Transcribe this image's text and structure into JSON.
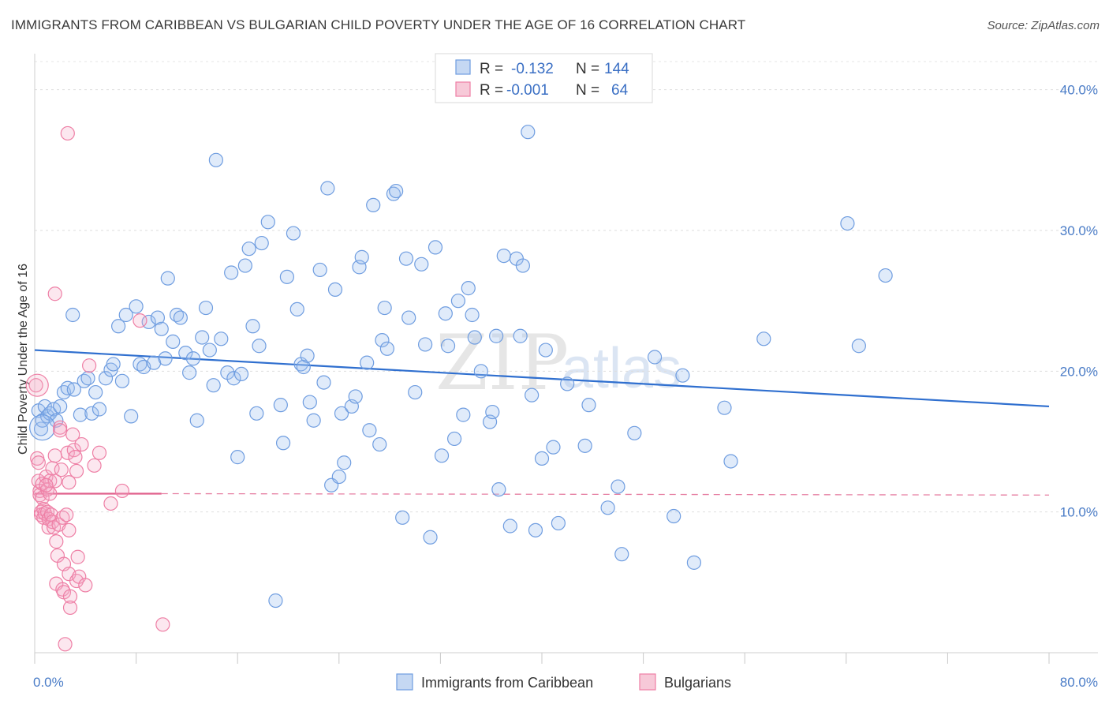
{
  "title": "IMMIGRANTS FROM CARIBBEAN VS BULGARIAN CHILD POVERTY UNDER THE AGE OF 16 CORRELATION CHART",
  "source": "Source: ZipAtlas.com",
  "watermark": {
    "zip": "ZIP",
    "atlas": "atlas"
  },
  "colors": {
    "blue": "#6f9de0",
    "blue_line": "#2f6fcf",
    "pink": "#ee7fa5",
    "pink_line": "#e0608c"
  },
  "legend": {
    "rows": [
      {
        "r_label": "R =",
        "r_value": "-0.132",
        "n_label": "N =",
        "n_value": "144"
      },
      {
        "r_label": "R =",
        "r_value": "-0.001",
        "n_label": "N =",
        "n_value": "64"
      }
    ]
  },
  "chart_data": {
    "type": "scatter",
    "ylabel": "Child Poverty Under the Age of 16",
    "xlim": [
      0,
      80
    ],
    "ylim": [
      0,
      42
    ],
    "y_ticks": [
      "10.0%",
      "20.0%",
      "30.0%",
      "40.0%"
    ],
    "y_tick_values": [
      10,
      20,
      30,
      40
    ],
    "x_tick_labels": [
      "0.0%",
      "80.0%"
    ],
    "grid": true,
    "legend_position": "top-center",
    "series": [
      {
        "name": "Immigrants from Caribbean",
        "trend": {
          "x": [
            0,
            80
          ],
          "y": [
            21.5,
            17.5
          ]
        },
        "points": [
          [
            0.3,
            17.2
          ],
          [
            0.5,
            15.9
          ],
          [
            0.6,
            16.5
          ],
          [
            0.8,
            17.5
          ],
          [
            1.0,
            16.8
          ],
          [
            1.2,
            17.0
          ],
          [
            1.5,
            17.3
          ],
          [
            1.7,
            16.5
          ],
          [
            2.0,
            17.5
          ],
          [
            2.3,
            18.5
          ],
          [
            2.6,
            18.8
          ],
          [
            3.0,
            24.0
          ],
          [
            3.1,
            18.7
          ],
          [
            3.6,
            16.9
          ],
          [
            3.9,
            19.3
          ],
          [
            4.2,
            19.5
          ],
          [
            4.5,
            17.0
          ],
          [
            4.8,
            18.5
          ],
          [
            5.1,
            17.3
          ],
          [
            5.6,
            19.5
          ],
          [
            6.0,
            20.1
          ],
          [
            6.2,
            20.5
          ],
          [
            6.6,
            23.2
          ],
          [
            6.9,
            19.3
          ],
          [
            7.2,
            24.0
          ],
          [
            7.6,
            16.8
          ],
          [
            8.0,
            24.6
          ],
          [
            8.3,
            20.5
          ],
          [
            8.6,
            20.3
          ],
          [
            9.0,
            23.5
          ],
          [
            9.4,
            20.6
          ],
          [
            9.7,
            23.8
          ],
          [
            10.0,
            23.0
          ],
          [
            10.3,
            20.9
          ],
          [
            10.5,
            26.6
          ],
          [
            10.9,
            22.1
          ],
          [
            11.2,
            24.0
          ],
          [
            11.5,
            23.8
          ],
          [
            11.9,
            21.3
          ],
          [
            12.2,
            19.9
          ],
          [
            12.5,
            20.9
          ],
          [
            12.8,
            16.5
          ],
          [
            13.2,
            22.4
          ],
          [
            13.5,
            24.5
          ],
          [
            13.8,
            21.5
          ],
          [
            14.1,
            19.0
          ],
          [
            14.3,
            35.0
          ],
          [
            14.7,
            22.3
          ],
          [
            15.2,
            19.9
          ],
          [
            15.5,
            27.0
          ],
          [
            15.7,
            19.5
          ],
          [
            16.0,
            13.9
          ],
          [
            16.3,
            19.8
          ],
          [
            16.6,
            27.5
          ],
          [
            16.9,
            28.7
          ],
          [
            17.2,
            23.2
          ],
          [
            17.5,
            17.0
          ],
          [
            17.7,
            21.8
          ],
          [
            17.9,
            29.1
          ],
          [
            18.4,
            30.6
          ],
          [
            19.0,
            3.7
          ],
          [
            19.4,
            17.6
          ],
          [
            19.6,
            14.9
          ],
          [
            19.9,
            26.7
          ],
          [
            20.4,
            29.8
          ],
          [
            20.7,
            24.4
          ],
          [
            21.0,
            20.5
          ],
          [
            21.2,
            20.3
          ],
          [
            21.5,
            21.1
          ],
          [
            21.7,
            17.8
          ],
          [
            22.0,
            16.5
          ],
          [
            22.5,
            27.2
          ],
          [
            22.8,
            19.2
          ],
          [
            23.1,
            33.0
          ],
          [
            23.4,
            11.9
          ],
          [
            23.7,
            25.8
          ],
          [
            24.0,
            12.5
          ],
          [
            24.2,
            17.0
          ],
          [
            24.4,
            13.5
          ],
          [
            25.0,
            17.5
          ],
          [
            25.3,
            18.2
          ],
          [
            25.6,
            27.4
          ],
          [
            25.8,
            28.1
          ],
          [
            26.2,
            20.6
          ],
          [
            26.4,
            15.8
          ],
          [
            26.7,
            31.8
          ],
          [
            27.2,
            14.8
          ],
          [
            27.4,
            22.2
          ],
          [
            27.6,
            24.5
          ],
          [
            27.8,
            21.6
          ],
          [
            28.3,
            32.6
          ],
          [
            28.5,
            32.8
          ],
          [
            29.0,
            9.6
          ],
          [
            29.3,
            28.0
          ],
          [
            29.5,
            23.8
          ],
          [
            30.0,
            18.5
          ],
          [
            30.5,
            27.6
          ],
          [
            30.8,
            21.9
          ],
          [
            31.2,
            8.2
          ],
          [
            31.6,
            28.8
          ],
          [
            32.1,
            14.0
          ],
          [
            32.4,
            24.1
          ],
          [
            32.6,
            21.8
          ],
          [
            33.1,
            15.2
          ],
          [
            33.4,
            25.0
          ],
          [
            33.8,
            16.9
          ],
          [
            34.2,
            25.9
          ],
          [
            34.5,
            24.0
          ],
          [
            34.7,
            22.4
          ],
          [
            35.2,
            20.0
          ],
          [
            35.9,
            16.4
          ],
          [
            36.1,
            17.1
          ],
          [
            36.4,
            22.5
          ],
          [
            36.6,
            11.6
          ],
          [
            37.0,
            28.2
          ],
          [
            37.5,
            9.0
          ],
          [
            38.0,
            28.0
          ],
          [
            38.3,
            22.5
          ],
          [
            38.5,
            27.5
          ],
          [
            38.9,
            37.0
          ],
          [
            39.2,
            18.3
          ],
          [
            39.5,
            8.7
          ],
          [
            40.0,
            13.8
          ],
          [
            40.3,
            21.5
          ],
          [
            40.9,
            14.6
          ],
          [
            41.3,
            9.2
          ],
          [
            42.0,
            19.1
          ],
          [
            43.4,
            14.7
          ],
          [
            43.7,
            17.6
          ],
          [
            45.2,
            10.3
          ],
          [
            46.0,
            11.8
          ],
          [
            46.3,
            7.0
          ],
          [
            47.3,
            15.6
          ],
          [
            48.9,
            21.0
          ],
          [
            50.4,
            9.7
          ],
          [
            51.1,
            19.7
          ],
          [
            52.0,
            6.4
          ],
          [
            54.4,
            17.4
          ],
          [
            54.9,
            13.6
          ],
          [
            57.5,
            22.3
          ],
          [
            64.1,
            30.5
          ],
          [
            65.0,
            21.8
          ],
          [
            67.1,
            26.8
          ]
        ]
      },
      {
        "name": "Bulgarians",
        "trend": {
          "x": [
            0,
            10
          ],
          "y": [
            11.3,
            11.3
          ],
          "dashed_extension": {
            "x": [
              10,
              80
            ],
            "y": [
              11.3,
              11.2
            ]
          }
        },
        "points": [
          [
            0.1,
            19.0
          ],
          [
            0.2,
            13.8
          ],
          [
            0.3,
            13.5
          ],
          [
            0.3,
            12.2
          ],
          [
            0.4,
            11.5
          ],
          [
            0.4,
            11.2
          ],
          [
            0.5,
            10.0
          ],
          [
            0.5,
            9.8
          ],
          [
            0.6,
            12.0
          ],
          [
            0.6,
            11.0
          ],
          [
            0.7,
            10.2
          ],
          [
            0.7,
            9.6
          ],
          [
            0.8,
            9.9
          ],
          [
            0.9,
            12.5
          ],
          [
            1.0,
            11.6
          ],
          [
            1.0,
            10.0
          ],
          [
            1.1,
            9.5
          ],
          [
            1.1,
            8.9
          ],
          [
            1.2,
            12.2
          ],
          [
            1.2,
            11.3
          ],
          [
            1.3,
            9.8
          ],
          [
            1.4,
            13.1
          ],
          [
            1.4,
            9.3
          ],
          [
            1.5,
            8.9
          ],
          [
            1.6,
            14.0
          ],
          [
            1.6,
            12.2
          ],
          [
            1.7,
            7.9
          ],
          [
            1.7,
            4.9
          ],
          [
            1.8,
            6.9
          ],
          [
            1.9,
            9.1
          ],
          [
            2.0,
            16.0
          ],
          [
            2.0,
            15.8
          ],
          [
            2.1,
            13.0
          ],
          [
            2.2,
            9.6
          ],
          [
            2.2,
            4.5
          ],
          [
            2.3,
            6.3
          ],
          [
            2.3,
            4.3
          ],
          [
            2.4,
            0.6
          ],
          [
            2.5,
            9.8
          ],
          [
            2.6,
            36.9
          ],
          [
            2.6,
            14.2
          ],
          [
            2.7,
            12.1
          ],
          [
            2.7,
            8.7
          ],
          [
            2.7,
            5.6
          ],
          [
            2.8,
            4.0
          ],
          [
            2.8,
            3.2
          ],
          [
            3.0,
            15.5
          ],
          [
            3.1,
            14.4
          ],
          [
            3.2,
            13.9
          ],
          [
            3.3,
            12.9
          ],
          [
            3.3,
            5.1
          ],
          [
            3.4,
            6.8
          ],
          [
            3.5,
            5.4
          ],
          [
            3.7,
            14.8
          ],
          [
            4.0,
            4.8
          ],
          [
            4.3,
            20.4
          ],
          [
            4.7,
            13.3
          ],
          [
            5.1,
            14.2
          ],
          [
            6.0,
            10.6
          ],
          [
            6.9,
            11.5
          ],
          [
            8.3,
            23.6
          ],
          [
            10.1,
            2.0
          ],
          [
            1.6,
            25.5
          ],
          [
            0.9,
            11.9
          ]
        ]
      }
    ]
  }
}
